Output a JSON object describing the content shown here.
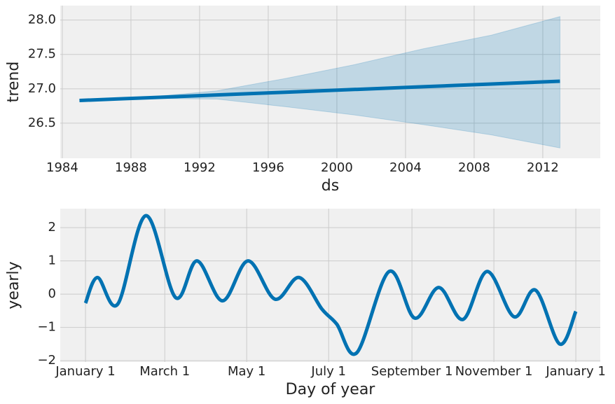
{
  "chart_data": [
    {
      "type": "line",
      "x_label": "ds",
      "y_label": "trend",
      "x": [
        1985,
        1989,
        1993,
        1997,
        2001,
        2005,
        2009,
        2013
      ],
      "series": [
        {
          "color": "#0072b2",
          "values": [
            26.83,
            26.87,
            26.91,
            26.95,
            26.99,
            27.03,
            27.07,
            27.11
          ]
        }
      ],
      "band": {
        "color": "#0072b2",
        "lower": [
          26.83,
          26.86,
          26.85,
          26.74,
          26.62,
          26.48,
          26.33,
          26.14
        ],
        "upper": [
          26.83,
          26.88,
          26.97,
          27.15,
          27.35,
          27.58,
          27.78,
          28.05
        ]
      },
      "xlim": [
        1983.88,
        2015.35
      ],
      "ylim": [
        25.99,
        28.21
      ],
      "xticks": [
        1984,
        1988,
        1992,
        1996,
        2000,
        2004,
        2008,
        2012
      ],
      "yticks": [
        {
          "value": 26.5,
          "label": "26.5"
        },
        {
          "value": 27,
          "label": "27.0"
        },
        {
          "value": 27.5,
          "label": "27.5"
        },
        {
          "value": 28,
          "label": "28.0"
        }
      ],
      "grid": true
    },
    {
      "type": "line",
      "x_label": "Day of year",
      "y_label": "yearly",
      "x": [
        0,
        9,
        24,
        45,
        67,
        83,
        102,
        121,
        141,
        159,
        176,
        187,
        202,
        226,
        245,
        263,
        281,
        299,
        319,
        335,
        353,
        365
      ],
      "series": [
        {
          "color": "#0072b2",
          "values": [
            -0.27,
            0.5,
            -0.3,
            2.36,
            -0.1,
            1.0,
            -0.2,
            1.0,
            -0.15,
            0.5,
            -0.45,
            -0.9,
            -1.76,
            0.68,
            -0.72,
            0.2,
            -0.76,
            0.68,
            -0.68,
            0.12,
            -1.5,
            -0.52
          ]
        }
      ],
      "xlim": [
        -18.8,
        383.2
      ],
      "ylim": [
        -2.04,
        2.57
      ],
      "xticks": [
        {
          "value": 0,
          "label": "January 1"
        },
        {
          "value": 59,
          "label": "March 1"
        },
        {
          "value": 120,
          "label": "May 1"
        },
        {
          "value": 181,
          "label": "July 1"
        },
        {
          "value": 243,
          "label": "September 1"
        },
        {
          "value": 304,
          "label": "November 1"
        },
        {
          "value": 365,
          "label": "January 1"
        }
      ],
      "yticks": [
        {
          "value": -2,
          "label": "−2"
        },
        {
          "value": -1,
          "label": "−1"
        },
        0,
        1,
        2
      ],
      "grid": true
    }
  ]
}
